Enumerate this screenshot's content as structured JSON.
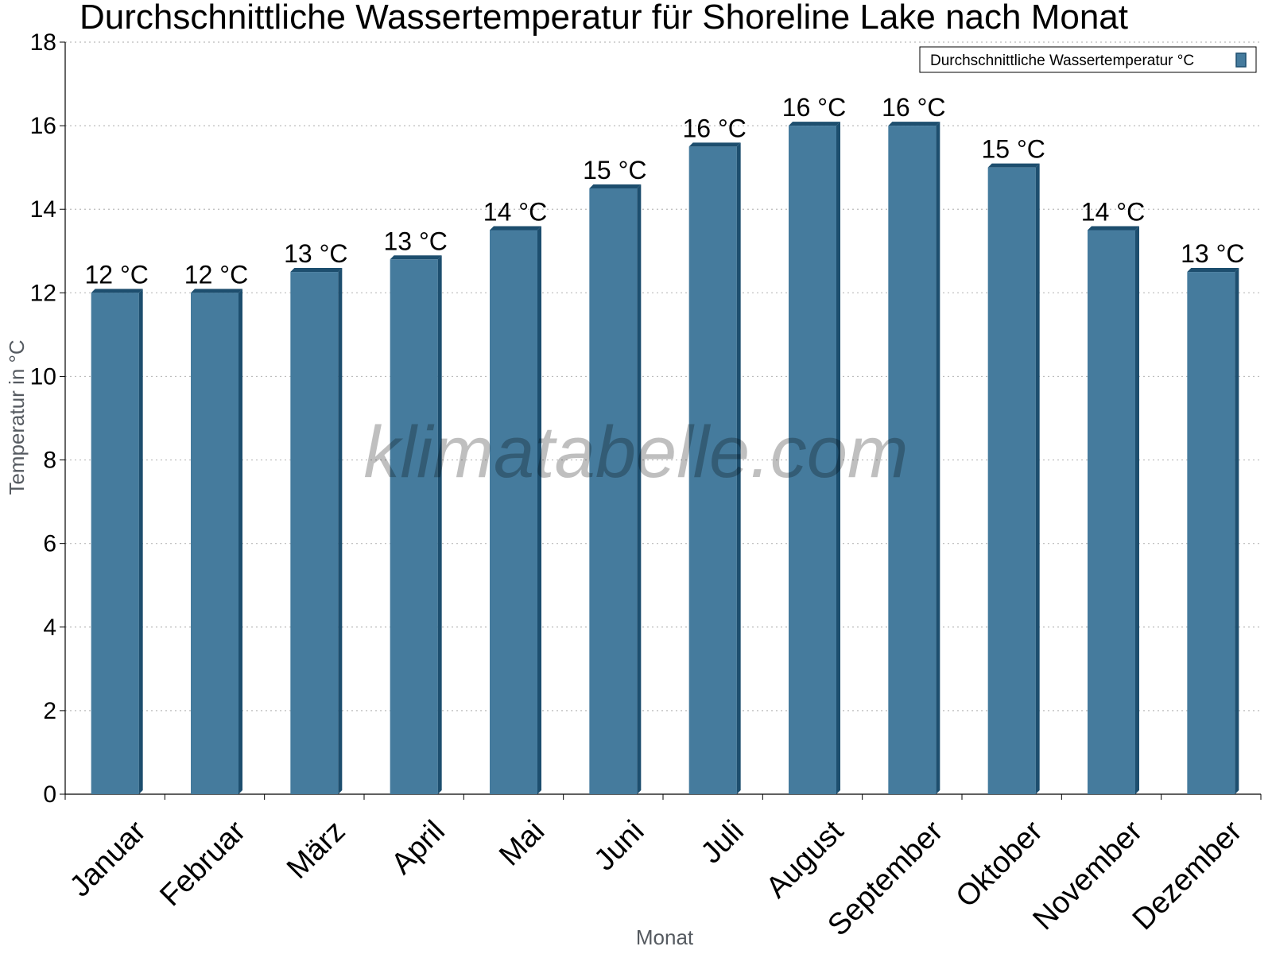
{
  "watermark": "klimatabelle.com",
  "colors": {
    "bar": "#457b9d",
    "bar_edge": "#1d4e6e",
    "grid": "#bbbbbb",
    "axis": "#000000"
  },
  "chart_data": {
    "type": "bar",
    "title": "Durchschnittliche Wassertemperatur für Shoreline Lake nach Monat",
    "xlabel": "Monat",
    "ylabel": "Temperatur in °C",
    "ylim": [
      0,
      18
    ],
    "yticks": [
      0,
      2,
      4,
      6,
      8,
      10,
      12,
      14,
      16,
      18
    ],
    "grid": true,
    "legend_position": "top-right",
    "categories": [
      "Januar",
      "Februar",
      "März",
      "April",
      "Mai",
      "Juni",
      "Juli",
      "August",
      "September",
      "Oktober",
      "November",
      "Dezember"
    ],
    "series": [
      {
        "name": "Durchschnittliche Wassertemperatur °C",
        "values": [
          12.0,
          12.0,
          12.5,
          12.8,
          13.5,
          14.5,
          15.5,
          16.0,
          16.0,
          15.0,
          13.5,
          12.5
        ],
        "labels": [
          "12 °C",
          "12 °C",
          "13 °C",
          "13 °C",
          "14 °C",
          "15 °C",
          "16 °C",
          "16 °C",
          "16 °C",
          "15 °C",
          "14 °C",
          "13 °C"
        ]
      }
    ]
  }
}
